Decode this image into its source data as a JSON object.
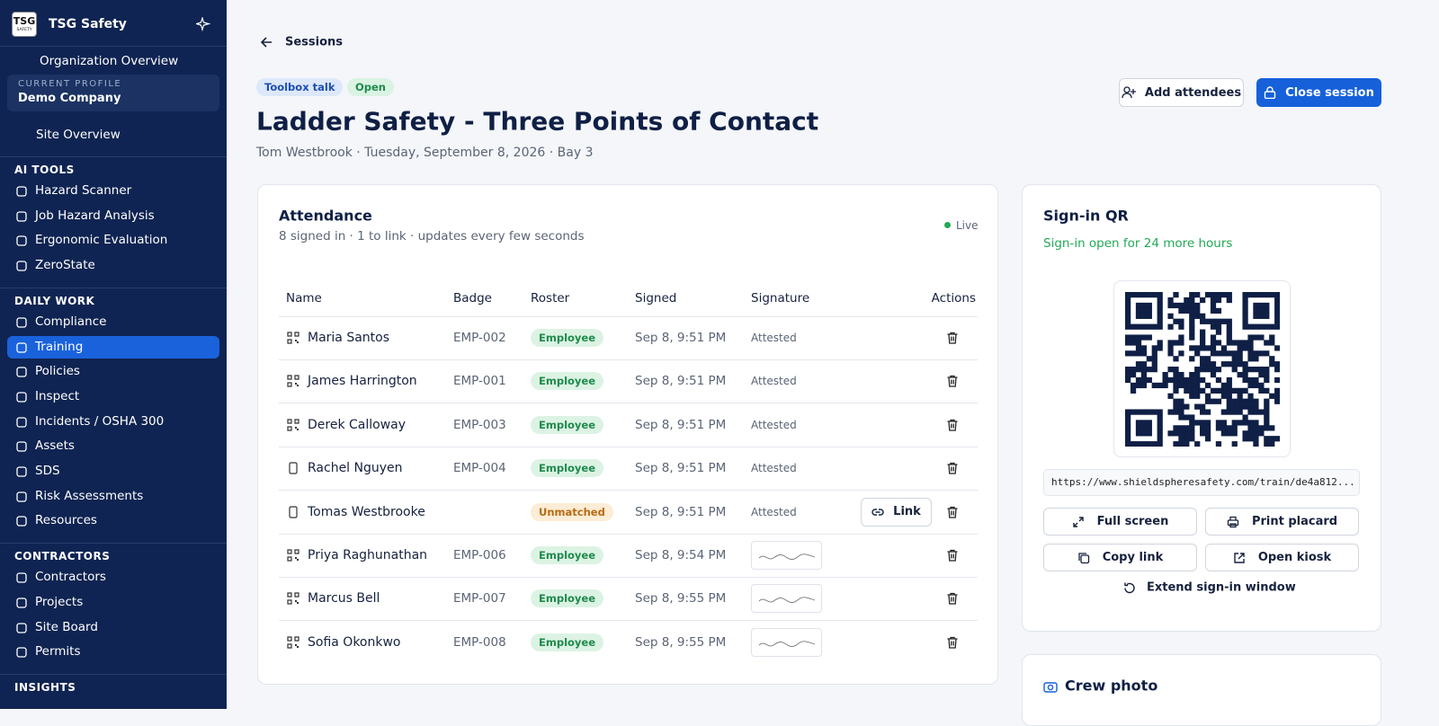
{
  "sidebar": {
    "logo": [
      "TSG",
      "SAFETY"
    ],
    "brand": "TSG Safety",
    "org_item": "Organization Overview",
    "profile": {
      "label": "CURRENT PROFILE",
      "name": "Demo Company"
    },
    "site_item": "Site Overview",
    "sections": [
      {
        "title": "AI TOOLS",
        "items": [
          {
            "label": "Hazard Scanner"
          },
          {
            "label": "Job Hazard Analysis"
          },
          {
            "label": "Ergonomic Evaluation"
          },
          {
            "label": "ZeroState"
          }
        ]
      },
      {
        "title": "DAILY WORK",
        "items": [
          {
            "label": "Compliance"
          },
          {
            "label": "Training",
            "active": true
          },
          {
            "label": "Policies"
          },
          {
            "label": "Inspect"
          },
          {
            "label": "Incidents / OSHA 300"
          },
          {
            "label": "Assets"
          },
          {
            "label": "SDS"
          },
          {
            "label": "Risk Assessments"
          },
          {
            "label": "Resources"
          }
        ]
      },
      {
        "title": "CONTRACTORS",
        "items": [
          {
            "label": "Contractors"
          },
          {
            "label": "Projects"
          },
          {
            "label": "Site Board"
          },
          {
            "label": "Permits"
          }
        ]
      },
      {
        "title": "INSIGHTS",
        "items": []
      }
    ]
  },
  "header": {
    "back": "Sessions",
    "tags": [
      "Toolbox talk",
      "Open"
    ],
    "title": "Ladder Safety - Three Points of Contact",
    "meta": "Tom Westbrook · Tuesday, September 8, 2026 · Bay 3",
    "actions": [
      "Add attendees",
      "Close session"
    ]
  },
  "attendance": {
    "title": "Attendance",
    "subtitle": "8 signed in · 1 to link · updates every few seconds",
    "live": "Live",
    "columns": [
      "Name",
      "Badge",
      "Roster",
      "Signed",
      "Signature",
      "Actions"
    ],
    "rows": [
      {
        "method": "qr",
        "name": "Maria Santos",
        "badge": "EMP-002",
        "roster": "Employee",
        "signed": "Sep 8, 9:51 PM",
        "signature": "Attested"
      },
      {
        "method": "qr",
        "name": "James Harrington",
        "badge": "EMP-001",
        "roster": "Employee",
        "signed": "Sep 8, 9:51 PM",
        "signature": "Attested"
      },
      {
        "method": "qr",
        "name": "Derek Calloway",
        "badge": "EMP-003",
        "roster": "Employee",
        "signed": "Sep 8, 9:51 PM",
        "signature": "Attested"
      },
      {
        "method": "phone",
        "name": "Rachel Nguyen",
        "badge": "EMP-004",
        "roster": "Employee",
        "signed": "Sep 8, 9:51 PM",
        "signature": "Attested"
      },
      {
        "method": "phone",
        "name": "Tomas Westbrooke",
        "roster": "Unmatched",
        "signed": "Sep 8, 9:51 PM",
        "signature": "Attested",
        "link_action": "Link"
      },
      {
        "method": "qr",
        "name": "Priya Raghunathan",
        "badge": "EMP-006",
        "roster": "Employee",
        "signed": "Sep 8, 9:54 PM"
      },
      {
        "method": "qr",
        "name": "Marcus Bell",
        "badge": "EMP-007",
        "roster": "Employee",
        "signed": "Sep 8, 9:55 PM"
      },
      {
        "method": "qr",
        "name": "Sofia Okonkwo",
        "badge": "EMP-008",
        "roster": "Employee",
        "signed": "Sep 8, 9:55 PM"
      }
    ]
  },
  "signin": {
    "title": "Sign-in QR",
    "status": "Sign-in open for 24 more hours",
    "url": "https://www.shieldspheresafety.com/train/de4a812...",
    "buttons": [
      "Full screen",
      "Print placard",
      "Copy link",
      "Open kiosk"
    ],
    "extend": "Extend sign-in window"
  },
  "crew_photo": {
    "title": "Crew photo"
  }
}
